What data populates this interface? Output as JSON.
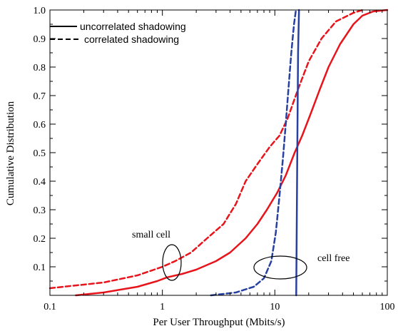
{
  "chart_data": {
    "type": "line",
    "xlabel": "Per User Throughput (Mbits/s)",
    "ylabel": "Cumulative Distribution",
    "xscale": "log",
    "xlim": [
      0.1,
      100
    ],
    "ylim": [
      0,
      1.0
    ],
    "x_ticks": [
      "0.1",
      "1",
      "10",
      "100"
    ],
    "y_ticks": [
      "0.1",
      "0.2",
      "0.3",
      "0.4",
      "0.5",
      "0.6",
      "0.7",
      "0.8",
      "0.9",
      "1.0"
    ],
    "grid": false,
    "legend_position": "top-left",
    "legend": [
      {
        "label": "uncorrelated shadowing",
        "style": "solid"
      },
      {
        "label": "correlated shadowing",
        "style": "dashed"
      }
    ],
    "annotations": [
      "small cell",
      "cell free"
    ],
    "series": [
      {
        "group": "small cell",
        "shadowing": "uncorrelated",
        "style": "solid",
        "color": "#e8141c",
        "points": [
          [
            0.17,
            0.0
          ],
          [
            0.3,
            0.01
          ],
          [
            0.6,
            0.03
          ],
          [
            0.9,
            0.05
          ],
          [
            1.1,
            0.063
          ],
          [
            1.5,
            0.075
          ],
          [
            2.0,
            0.09
          ],
          [
            3.0,
            0.12
          ],
          [
            4.0,
            0.15
          ],
          [
            5.5,
            0.2
          ],
          [
            7.0,
            0.25
          ],
          [
            8.5,
            0.3
          ],
          [
            10.5,
            0.36
          ],
          [
            12.5,
            0.42
          ],
          [
            15.0,
            0.5
          ],
          [
            17.5,
            0.56
          ],
          [
            21.0,
            0.64
          ],
          [
            25.0,
            0.72
          ],
          [
            30.0,
            0.8
          ],
          [
            38.0,
            0.88
          ],
          [
            50.0,
            0.95
          ],
          [
            60.0,
            0.98
          ],
          [
            75.0,
            0.995
          ],
          [
            100.0,
            1.0
          ]
        ]
      },
      {
        "group": "small cell",
        "shadowing": "correlated",
        "style": "dashed",
        "color": "#e8141c",
        "points": [
          [
            0.1,
            0.025
          ],
          [
            0.3,
            0.045
          ],
          [
            0.6,
            0.07
          ],
          [
            1.0,
            0.1
          ],
          [
            1.3,
            0.12
          ],
          [
            1.8,
            0.15
          ],
          [
            2.5,
            0.2
          ],
          [
            3.5,
            0.25
          ],
          [
            4.5,
            0.32
          ],
          [
            5.5,
            0.4
          ],
          [
            7.0,
            0.46
          ],
          [
            9.0,
            0.52
          ],
          [
            11.0,
            0.56
          ],
          [
            13.0,
            0.62
          ],
          [
            16.0,
            0.72
          ],
          [
            20.0,
            0.82
          ],
          [
            26.0,
            0.9
          ],
          [
            35.0,
            0.96
          ],
          [
            50.0,
            0.99
          ],
          [
            60.0,
            1.0
          ]
        ]
      },
      {
        "group": "cell free",
        "shadowing": "uncorrelated",
        "style": "solid",
        "color": "#2840a0",
        "points": [
          [
            15.5,
            0.0
          ],
          [
            15.7,
            0.3
          ],
          [
            15.9,
            0.6
          ],
          [
            16.1,
            0.85
          ],
          [
            16.4,
            1.0
          ]
        ]
      },
      {
        "group": "cell free",
        "shadowing": "correlated",
        "style": "dashed",
        "color": "#2840a0",
        "points": [
          [
            2.7,
            0.0
          ],
          [
            4.5,
            0.01
          ],
          [
            6.5,
            0.03
          ],
          [
            8.0,
            0.06
          ],
          [
            9.3,
            0.12
          ],
          [
            10.2,
            0.22
          ],
          [
            11.0,
            0.35
          ],
          [
            11.8,
            0.48
          ],
          [
            12.5,
            0.6
          ],
          [
            13.2,
            0.72
          ],
          [
            14.0,
            0.85
          ],
          [
            14.8,
            0.95
          ],
          [
            15.4,
            1.0
          ]
        ]
      }
    ]
  }
}
